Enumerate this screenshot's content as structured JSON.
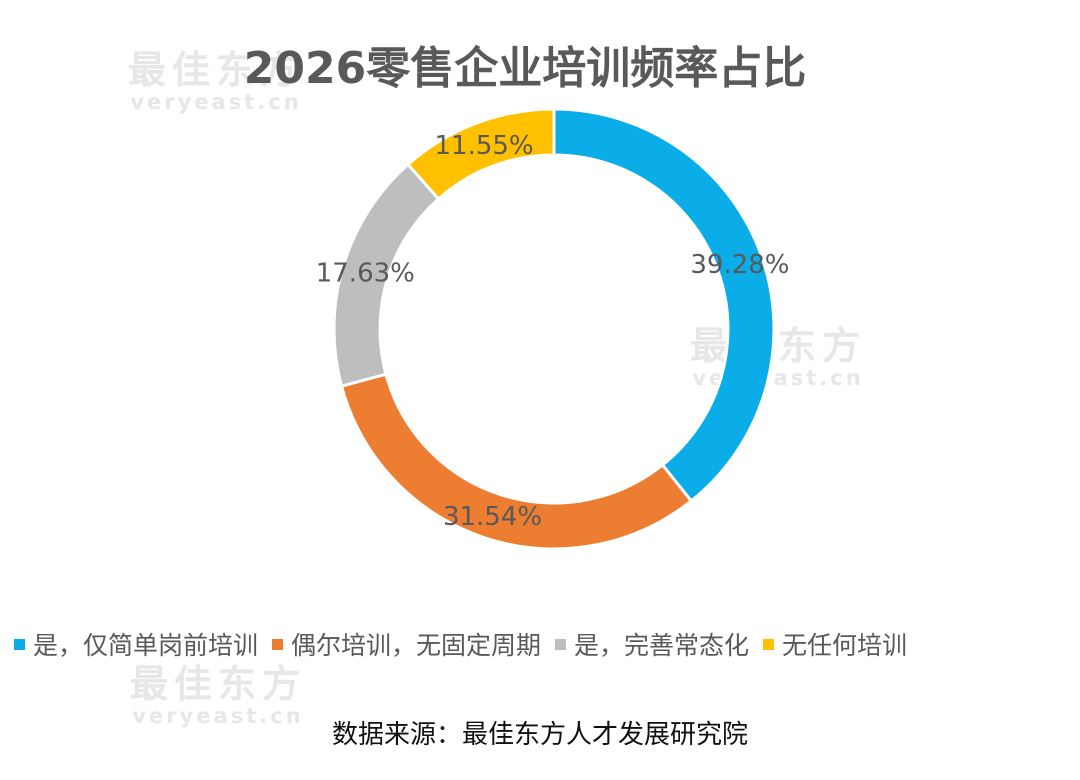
{
  "watermark": {
    "cn": "最佳东方",
    "en": "veryeast.cn"
  },
  "source": "数据来源：最佳东方人才发展研究院",
  "chart_data": {
    "type": "pie",
    "variant": "donut",
    "title": "2026零售企业培训频率占比",
    "legend_position": "bottom",
    "categories": [
      "是，仅简单岗前培训",
      "偶尔培训，无固定周期",
      "是，完善常态化",
      "无任何培训"
    ],
    "values": [
      39.28,
      31.54,
      17.63,
      11.55
    ],
    "value_labels": [
      "39.28%",
      "31.54%",
      "17.63%",
      "11.55%"
    ],
    "colors": [
      "#0AADE8",
      "#ED7D31",
      "#BEBEBE",
      "#FFC000"
    ]
  }
}
